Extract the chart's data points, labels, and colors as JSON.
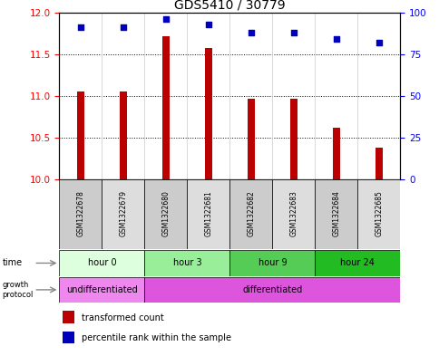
{
  "title": "GDS5410 / 30779",
  "samples": [
    "GSM1322678",
    "GSM1322679",
    "GSM1322680",
    "GSM1322681",
    "GSM1322682",
    "GSM1322683",
    "GSM1322684",
    "GSM1322685"
  ],
  "transformed_count": [
    11.05,
    11.05,
    11.72,
    11.58,
    10.97,
    10.97,
    10.62,
    10.38
  ],
  "percentile_rank": [
    91,
    91,
    96,
    93,
    88,
    88,
    84,
    82
  ],
  "ylim_left": [
    10,
    12
  ],
  "ylim_right": [
    0,
    100
  ],
  "yticks_left": [
    10,
    10.5,
    11,
    11.5,
    12
  ],
  "yticks_right": [
    0,
    25,
    50,
    75,
    100
  ],
  "bar_color": "#bb0000",
  "dot_color": "#0000bb",
  "time_groups": [
    {
      "label": "hour 0",
      "start": 0,
      "end": 2,
      "color": "#ddffdd"
    },
    {
      "label": "hour 3",
      "start": 2,
      "end": 4,
      "color": "#99ee99"
    },
    {
      "label": "hour 9",
      "start": 4,
      "end": 6,
      "color": "#55cc55"
    },
    {
      "label": "hour 24",
      "start": 6,
      "end": 8,
      "color": "#22bb22"
    }
  ],
  "protocol_groups": [
    {
      "label": "undifferentiated",
      "start": 0,
      "end": 2,
      "color": "#ee88ee"
    },
    {
      "label": "differentiated",
      "start": 2,
      "end": 8,
      "color": "#dd55dd"
    }
  ],
  "legend_items": [
    {
      "color": "#bb0000",
      "label": "transformed count"
    },
    {
      "color": "#0000bb",
      "label": "percentile rank within the sample"
    }
  ],
  "background_color": "#ffffff"
}
